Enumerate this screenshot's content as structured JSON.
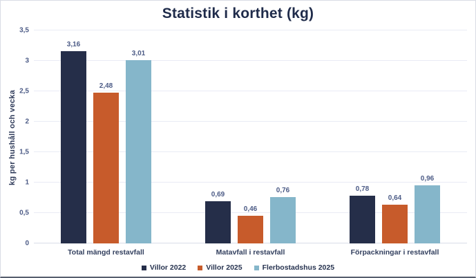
{
  "title": "Statistik i korthet (kg)",
  "colors": {
    "series_navy": "#252e49",
    "series_orange": "#c75b2b",
    "series_lightblue": "#85b6ca",
    "gridline": "#e9ebf5",
    "axis_text": "#4c5b86",
    "title_text": "#1f2b4a",
    "window_border": "#d9dce5"
  },
  "chart_data": {
    "type": "bar",
    "title": "Statistik i korthet (kg)",
    "xlabel": "",
    "ylabel": "kg per hushåll och vecka",
    "ylim": [
      0,
      3.5
    ],
    "grid": true,
    "legend_position": "bottom",
    "decimal_separator": ",",
    "categories": [
      "Total mängd restavfall",
      "Matavfall i restavfall",
      "Förpackningar i restavfall"
    ],
    "series": [
      {
        "name": "Villor 2022",
        "color": "#252e49",
        "values": [
          3.16,
          0.69,
          0.78
        ],
        "labels": [
          "3,16",
          "0,69",
          "0,78"
        ]
      },
      {
        "name": "Villor 2025",
        "color": "#c75b2b",
        "values": [
          2.48,
          0.46,
          0.64
        ],
        "labels": [
          "2,48",
          "0,46",
          "0,64"
        ]
      },
      {
        "name": "Flerbostadshus 2025",
        "color": "#85b6ca",
        "values": [
          3.01,
          0.76,
          0.96
        ],
        "labels": [
          "3,01",
          "0,76",
          "0,96"
        ]
      }
    ],
    "yticks": [
      {
        "value": 0,
        "label": "0"
      },
      {
        "value": 0.5,
        "label": "0,5"
      },
      {
        "value": 1,
        "label": "1"
      },
      {
        "value": 1.5,
        "label": "1,5"
      },
      {
        "value": 2,
        "label": "2"
      },
      {
        "value": 2.5,
        "label": "2,5"
      },
      {
        "value": 3,
        "label": "3"
      },
      {
        "value": 3.5,
        "label": "3,5"
      }
    ]
  }
}
